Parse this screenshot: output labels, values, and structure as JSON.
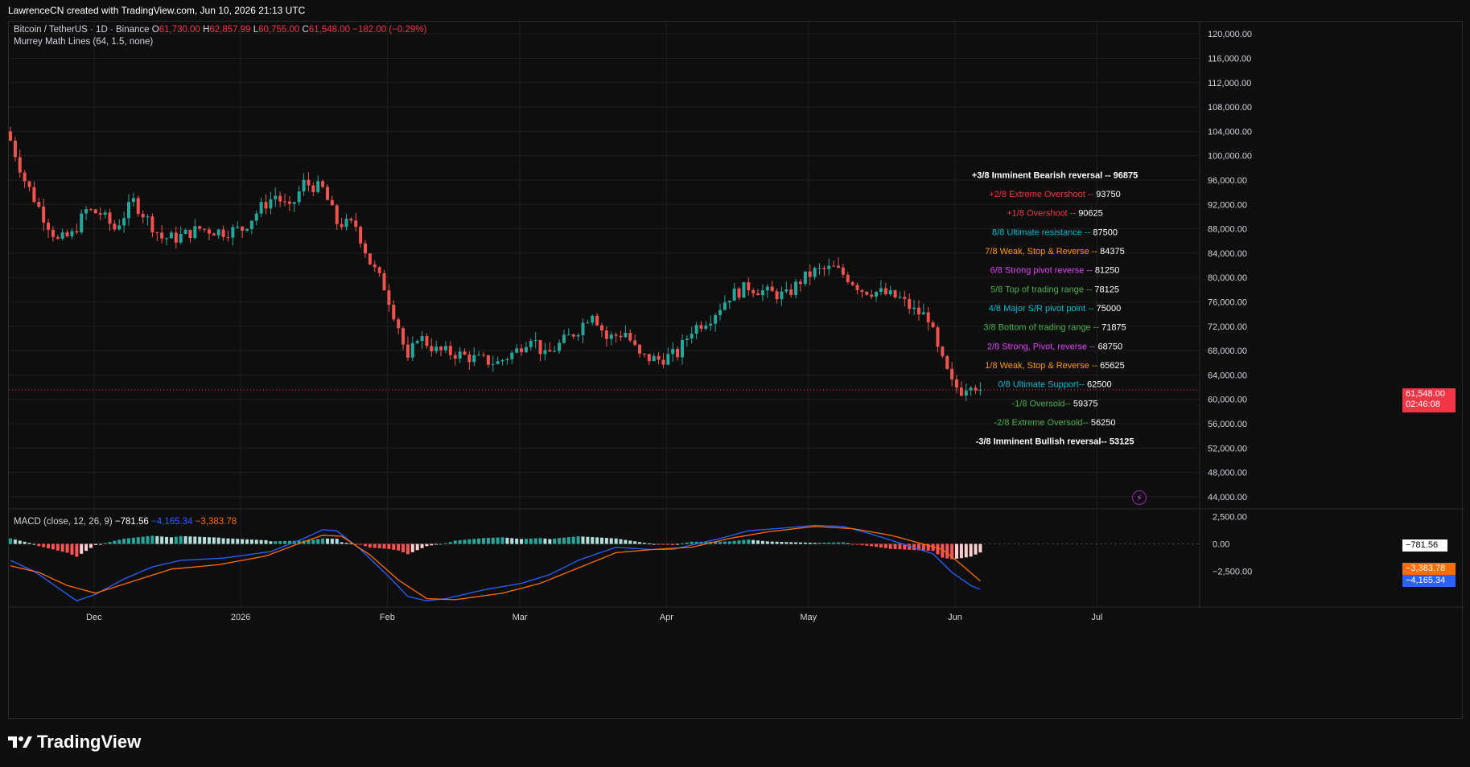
{
  "header": {
    "credit": "LawrenceCN created with TradingView.com, Jun 10, 2026 21:13 UTC"
  },
  "symbol_legend": {
    "name": "Bitcoin / TetherUS · 1D · Binance",
    "o_label": "O",
    "o": "61,730.00",
    "h_label": "H",
    "h": "62,857.99",
    "l_label": "L",
    "l": "60,755.00",
    "c_label": "C",
    "c": "61,548.00",
    "change": "−182.00 (−0.29%)"
  },
  "indicator_legend": "Murrey Math Lines (64, 1.5, none)",
  "macd_legend": {
    "label": "MACD (close, 12, 26, 9)",
    "hist": "−781.56",
    "macd": "−4,165.34",
    "signal": "−3,383.78"
  },
  "price_badge": {
    "price": "61,548.00",
    "countdown": "02:46:08"
  },
  "macd_badges": {
    "hist": "−781.56",
    "signal": "−3,383.78",
    "macd": "−4,165.34"
  },
  "colors": {
    "up": "#26a69a",
    "down": "#ef5350",
    "macd_line": "#2962ff",
    "signal_line": "#ff6d00",
    "bg": "#0e0e0e",
    "grid": "#1e1e1e"
  },
  "brand": "TradingView",
  "chart_data": [
    {
      "type": "candlestick",
      "title": "Bitcoin / TetherUS · 1D · Binance",
      "x_ticks": [
        "Dec",
        "2026",
        "Feb",
        "Mar",
        "Apr",
        "May",
        "Jun",
        "Jul"
      ],
      "y_ticks": [
        "120,000.00",
        "116,000.00",
        "112,000.00",
        "108,000.00",
        "104,000.00",
        "100,000.00",
        "96,000.00",
        "92,000.00",
        "88,000.00",
        "84,000.00",
        "80,000.00",
        "76,000.00",
        "72,000.00",
        "68,000.00",
        "64,000.00",
        "60,000.00",
        "56,000.00",
        "52,000.00",
        "48,000.00",
        "44,000.00"
      ],
      "y_tick_values": [
        120000,
        116000,
        112000,
        108000,
        104000,
        100000,
        96000,
        92000,
        88000,
        84000,
        80000,
        76000,
        72000,
        68000,
        64000,
        60000,
        56000,
        52000,
        48000,
        44000
      ],
      "ylim": [
        42000,
        122000
      ],
      "close_anchors": [
        {
          "day": 0,
          "close": 102500
        },
        {
          "day": 3,
          "close": 96000
        },
        {
          "day": 7,
          "close": 90000
        },
        {
          "day": 10,
          "close": 86000
        },
        {
          "day": 13,
          "close": 87000
        },
        {
          "day": 16,
          "close": 91000
        },
        {
          "day": 19,
          "close": 90500
        },
        {
          "day": 22,
          "close": 88000
        },
        {
          "day": 26,
          "close": 92500
        },
        {
          "day": 29,
          "close": 89500
        },
        {
          "day": 32,
          "close": 86500
        },
        {
          "day": 35,
          "close": 86500
        },
        {
          "day": 40,
          "close": 88000
        },
        {
          "day": 45,
          "close": 87500
        },
        {
          "day": 49,
          "close": 88000
        },
        {
          "day": 53,
          "close": 91500
        },
        {
          "day": 56,
          "close": 93500
        },
        {
          "day": 59,
          "close": 91000
        },
        {
          "day": 62,
          "close": 95500
        },
        {
          "day": 66,
          "close": 94500
        },
        {
          "day": 69,
          "close": 89000
        },
        {
          "day": 73,
          "close": 88500
        },
        {
          "day": 76,
          "close": 82500
        },
        {
          "day": 79,
          "close": 78500
        },
        {
          "day": 82,
          "close": 72000
        },
        {
          "day": 84,
          "close": 66000
        },
        {
          "day": 86,
          "close": 70500
        },
        {
          "day": 90,
          "close": 68000
        },
        {
          "day": 94,
          "close": 67500
        },
        {
          "day": 99,
          "close": 66500
        },
        {
          "day": 103,
          "close": 66000
        },
        {
          "day": 107,
          "close": 68000
        },
        {
          "day": 110,
          "close": 70500
        },
        {
          "day": 113,
          "close": 67000
        },
        {
          "day": 116,
          "close": 69000
        },
        {
          "day": 120,
          "close": 71500
        },
        {
          "day": 123,
          "close": 74500
        },
        {
          "day": 126,
          "close": 70000
        },
        {
          "day": 130,
          "close": 71000
        },
        {
          "day": 133,
          "close": 67000
        },
        {
          "day": 137,
          "close": 66500
        },
        {
          "day": 141,
          "close": 67500
        },
        {
          "day": 144,
          "close": 71500
        },
        {
          "day": 148,
          "close": 73500
        },
        {
          "day": 152,
          "close": 77000
        },
        {
          "day": 156,
          "close": 78500
        },
        {
          "day": 160,
          "close": 77500
        },
        {
          "day": 164,
          "close": 77000
        },
        {
          "day": 167,
          "close": 79500
        },
        {
          "day": 170,
          "close": 81000
        },
        {
          "day": 174,
          "close": 81500
        },
        {
          "day": 177,
          "close": 80000
        },
        {
          "day": 180,
          "close": 78000
        },
        {
          "day": 184,
          "close": 77500
        },
        {
          "day": 188,
          "close": 76500
        },
        {
          "day": 191,
          "close": 74500
        },
        {
          "day": 194,
          "close": 73500
        },
        {
          "day": 196,
          "close": 68000
        },
        {
          "day": 199,
          "close": 62500
        },
        {
          "day": 201,
          "close": 61500
        },
        {
          "day": 203,
          "close": 63000
        },
        {
          "day": 205,
          "close": 61548
        }
      ],
      "last_price": 61548,
      "murrey_lines": [
        {
          "label": "+3/8 Imminent Bearish reversal -- ",
          "value": "96875",
          "price": 96875,
          "color": "#ffffff",
          "bold": true
        },
        {
          "label": "+2/8 Extreme Overshoot -- ",
          "value": "93750",
          "price": 93750,
          "color": "#f23645",
          "bold": false
        },
        {
          "label": "+1/8 Overshoot -- ",
          "value": "90625",
          "price": 90625,
          "color": "#f23645",
          "bold": false
        },
        {
          "label": "8/8 Ultimate resistance -- ",
          "value": "87500",
          "price": 87500,
          "color": "#00bcd4",
          "bold": false
        },
        {
          "label": "7/8 Weak, Stop & Reverse -- ",
          "value": "84375",
          "price": 84375,
          "color": "#ff9800",
          "bold": false
        },
        {
          "label": "6/8 Strong pivot reverse -- ",
          "value": "81250",
          "price": 81250,
          "color": "#e040fb",
          "bold": false
        },
        {
          "label": "5/8 Top of trading range -- ",
          "value": "78125",
          "price": 78125,
          "color": "#4caf50",
          "bold": false
        },
        {
          "label": "4/8 Major S/R pivot point -- ",
          "value": "75000",
          "price": 75000,
          "color": "#00bcd4",
          "bold": false
        },
        {
          "label": "3/8 Bottom of trading range -- ",
          "value": "71875",
          "price": 71875,
          "color": "#4caf50",
          "bold": false
        },
        {
          "label": "2/8 Strong, Pivot, reverse -- ",
          "value": "68750",
          "price": 68750,
          "color": "#e040fb",
          "bold": false
        },
        {
          "label": "1/8 Weak, Stop & Reverse -- ",
          "value": "65625",
          "price": 65625,
          "color": "#ff9800",
          "bold": false
        },
        {
          "label": "0/8 Ultimate Support-- ",
          "value": "62500",
          "price": 62500,
          "color": "#00bcd4",
          "bold": false
        },
        {
          "label": "-1/8 Oversold-- ",
          "value": "59375",
          "price": 59375,
          "color": "#4caf50",
          "bold": false
        },
        {
          "label": "-2/8 Extreme Oversold-- ",
          "value": "56250",
          "price": 56250,
          "color": "#4caf50",
          "bold": false
        },
        {
          "label": "-3/8 Imminent Bullish reversal-- ",
          "value": "53125",
          "price": 53125,
          "color": "#ffffff",
          "bold": true
        }
      ]
    },
    {
      "type": "line",
      "title": "MACD (close, 12, 26, 9)",
      "y_ticks": [
        "2,500.00",
        "0.00",
        "−2,500.00"
      ],
      "y_tick_values": [
        2500,
        0,
        -2500
      ],
      "ylim": [
        -6500,
        3200
      ],
      "series": [
        {
          "name": "MACD",
          "color": "#2962ff",
          "anchors": [
            [
              0,
              -1500
            ],
            [
              5,
              -2500
            ],
            [
              10,
              -4000
            ],
            [
              14,
              -5200
            ],
            [
              18,
              -4600
            ],
            [
              24,
              -3200
            ],
            [
              30,
              -2100
            ],
            [
              36,
              -1500
            ],
            [
              45,
              -1300
            ],
            [
              55,
              -700
            ],
            [
              62,
              500
            ],
            [
              66,
              1300
            ],
            [
              69,
              1200
            ],
            [
              74,
              -500
            ],
            [
              80,
              -3000
            ],
            [
              84,
              -4800
            ],
            [
              88,
              -5200
            ],
            [
              92,
              -5000
            ],
            [
              100,
              -4200
            ],
            [
              108,
              -3600
            ],
            [
              114,
              -2800
            ],
            [
              120,
              -1500
            ],
            [
              128,
              -300
            ],
            [
              135,
              -500
            ],
            [
              140,
              -500
            ],
            [
              145,
              0
            ],
            [
              150,
              500
            ],
            [
              156,
              1200
            ],
            [
              162,
              1400
            ],
            [
              170,
              1700
            ],
            [
              176,
              1600
            ],
            [
              182,
              900
            ],
            [
              190,
              -200
            ],
            [
              195,
              -900
            ],
            [
              199,
              -2600
            ],
            [
              203,
              -3800
            ],
            [
              205,
              -4165
            ]
          ]
        },
        {
          "name": "Signal",
          "color": "#ff6d00",
          "anchors": [
            [
              0,
              -2000
            ],
            [
              6,
              -2600
            ],
            [
              12,
              -3800
            ],
            [
              18,
              -4500
            ],
            [
              26,
              -3400
            ],
            [
              34,
              -2300
            ],
            [
              44,
              -1900
            ],
            [
              54,
              -1100
            ],
            [
              62,
              200
            ],
            [
              66,
              800
            ],
            [
              70,
              700
            ],
            [
              76,
              -1000
            ],
            [
              82,
              -3300
            ],
            [
              88,
              -5000
            ],
            [
              94,
              -5100
            ],
            [
              104,
              -4500
            ],
            [
              112,
              -3600
            ],
            [
              120,
              -2200
            ],
            [
              128,
              -800
            ],
            [
              136,
              -500
            ],
            [
              144,
              -300
            ],
            [
              152,
              500
            ],
            [
              160,
              1100
            ],
            [
              170,
              1600
            ],
            [
              178,
              1400
            ],
            [
              186,
              800
            ],
            [
              192,
              100
            ],
            [
              197,
              -500
            ],
            [
              201,
              -1900
            ],
            [
              205,
              -3384
            ]
          ]
        }
      ],
      "last_histogram": -781.56
    }
  ]
}
